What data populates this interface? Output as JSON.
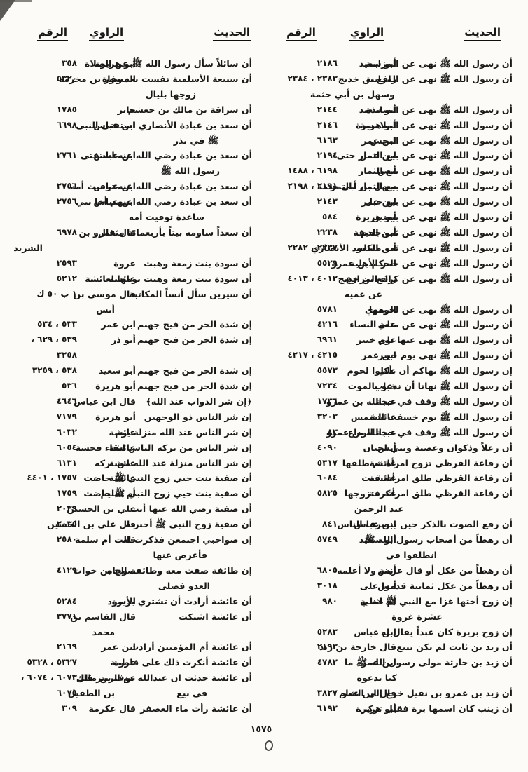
{
  "page": {
    "page_number": "١٥٧٥"
  },
  "columns": [
    {
      "id": "right-index-column",
      "headers": {
        "hadith": "الحديث",
        "narrator": "الراوي",
        "number": "الرقم"
      },
      "rows": [
        {
          "hadith": [
            "أن رسول الله ﷺ نهى عن المزابنة"
          ],
          "narrator": [
            "أبو سعيد"
          ],
          "number": [
            "٢١٨٦"
          ]
        },
        {
          "hadith": [
            "أن رسول الله ﷺ نهى عن المزابنة"
          ],
          "narrator": [
            "رافع بن خديج",
            "وسهل بن أبي حثمة"
          ],
          "n_indent": 2,
          "number": [
            "٢٣٨٤ ، ٢٣٨٣"
          ]
        },
        {
          "hadith": [
            "أن رسول الله ﷺ نهى عن المنابذة"
          ],
          "narrator": [
            "أبو سعيد"
          ],
          "number": [
            "٢١٤٤"
          ]
        },
        {
          "hadith": [
            "أن رسول الله ﷺ نهى عن الملامسة"
          ],
          "narrator": [
            "أبو هريرة"
          ],
          "number": [
            "٢١٤٦"
          ]
        },
        {
          "hadith": [
            "أن رسول الله ﷺ نهى عن النجش"
          ],
          "narrator": [
            "ابن عمر"
          ],
          "number": [
            "٦١٦٣"
          ]
        },
        {
          "hadith": [
            "أن رسول الله ﷺ نهى عن بيع الثمار حتى"
          ],
          "narrator": [
            "ابن عمر"
          ],
          "number": [
            "٢١٩٤"
          ]
        },
        {
          "hadith": [
            "أن رسول الله ﷺ نهى عن بيع الثمار"
          ],
          "narrator": [
            "أنس"
          ],
          "number": [
            "١٤٨٨ ، ٦١٩٨"
          ]
        },
        {
          "hadith": [
            "أن رسول الله ﷺ نهى عن بيع الثمار بالتمر"
          ],
          "narrator": [
            "سهل بن أبي حثمة"
          ],
          "number": [
            "٢١٩٨ ، ٢١٩١"
          ]
        },
        {
          "hadith": [
            "أن رسول الله ﷺ نهى عن بيع حبل"
          ],
          "narrator": [
            "ابن عمر"
          ],
          "number": [
            "٢١٤٣"
          ]
        },
        {
          "hadith": [
            "أن رسول الله ﷺ نهى عن بيعتين"
          ],
          "narrator": [
            "أبو هريرة"
          ],
          "number": [
            "٥٨٤"
          ]
        },
        {
          "hadith": [
            "أن رسول الله ﷺ نهى عن ثمن الدم"
          ],
          "narrator": [
            "أبو جحيفة"
          ],
          "number": [
            "٢٢٣٨"
          ]
        },
        {
          "hadith": [
            "أن رسول الله ﷺ نهى عن ثمن الكلب"
          ],
          "narrator": [
            "أبو مسعود الأنصاري"
          ],
          "number": [
            "٢٢٨٢ ، ٢٢٣٧"
          ]
        },
        {
          "hadith": [
            "أن رسول الله ﷺ نهى عن حمر الأهلية"
          ],
          "narrator": [
            "الحكم بن عمرو"
          ],
          "number": [
            "٥٥٢٩"
          ]
        },
        {
          "hadith": [
            "أن رسول الله ﷺ نهى عن كراء المزارع"
          ],
          "narrator": [
            "رافع بن خديج",
            "عن عميه"
          ],
          "n_indent": 20,
          "number": [
            "٤٠١٣ ، ٤٠١٢"
          ]
        },
        {
          "hadith": [
            "أن رسول الله ﷺ نهى عن لحومها"
          ],
          "narrator": [
            "الزهري"
          ],
          "number": [
            "٥٧٨١"
          ]
        },
        {
          "hadith": [
            "أن رسول الله ﷺ نهى عن متعة النساء"
          ],
          "narrator": [
            "علي"
          ],
          "number": [
            "٤٢١٦"
          ]
        },
        {
          "hadith": [
            "أن رسول الله ﷺ نهى عنها يوم خيبر"
          ],
          "narrator": [
            "علي"
          ],
          "number": [
            "٦٩٦١"
          ]
        },
        {
          "hadith": [
            "أن رسول الله ﷺ نهى يوم خيبر"
          ],
          "narrator": [
            "ابن عمر"
          ],
          "number": [
            "٤٢١٧ ، ٤٢١٥"
          ]
        },
        {
          "hadith": [
            "إن رسول الله ﷺ نهاكم أن تأكلوا لحوم"
          ],
          "narrator": [
            "علي"
          ],
          "number": [
            "٥٥٧٣"
          ]
        },
        {
          "hadith": [
            "أن رسول الله ﷺ نهانا أن ندعو بالموت"
          ],
          "narrator": [
            "خباب"
          ],
          "number": [
            "٧٢٣٤"
          ]
        },
        {
          "hadith": [
            "أن رسول الله ﷺ وقف في حجة"
          ],
          "narrator": [
            "عبدالله بن عمرو"
          ],
          "number": [
            "١٧٣٦"
          ]
        },
        {
          "hadith": [
            "أن رسول الله ﷺ يوم خسفت الشمس"
          ],
          "narrator": [
            "عائشة"
          ],
          "number": [
            "٣٢٠٣"
          ]
        },
        {
          "hadith": [
            "أن رسول الله ﷺ وقف في حجة الوداع"
          ],
          "narrator": [
            "عبدالله بن عمرو"
          ],
          "number": [
            "٨٣"
          ]
        },
        {
          "hadith": [
            "أن رعلاً وذكوان وعصية وبني لحيان"
          ],
          "narrator": [
            "أنس"
          ],
          "number": [
            "٤٠٩٠"
          ]
        },
        {
          "hadith": [
            "أن رفاعة القرظي تزوج امرأة ثم طلقها"
          ],
          "narrator": [
            "عائشة"
          ],
          "number": [
            "٥٣١٧"
          ]
        },
        {
          "hadith": [
            "أن رفاعة القرظي طلق امرأته فبت"
          ],
          "narrator": [
            "عائشة"
          ],
          "number": [
            "٦٠٨٤"
          ]
        },
        {
          "hadith": [
            "أن رفاعة القرظي طلق امرأته فتزوجها",
            "عبد الرحمن"
          ],
          "indent": 155,
          "narrator": [
            "عكرمة"
          ],
          "number": [
            "٥٨٢٥"
          ]
        },
        {
          "hadith": [
            "أن رفع الصوت بالذكر حين ينصرف الناس"
          ],
          "narrator": [
            "ابن عباس"
          ],
          "number": [
            "٨٤١"
          ]
        },
        {
          "hadith": [
            "أن رهطاً من أصحاب رسول الله ﷺ",
            "انطلقوا في"
          ],
          "indent": 108,
          "narrator": [
            "أبو سعيد"
          ],
          "number": [
            "٥٧٤٩"
          ]
        },
        {
          "hadith": [
            "أن رهطاً من عكل أو قال عرينة ولا أعلمه"
          ],
          "narrator": [
            "أنس"
          ],
          "number": [
            "٦٨٠٥"
          ]
        },
        {
          "hadith": [
            "أن رهطاً من عكل ثمانية قدموا على"
          ],
          "narrator": [
            "أنس"
          ],
          "number": [
            "٣٠١٨"
          ]
        },
        {
          "hadith": [
            "إن زوج أختها غزا مع النبي ﷺ اثنتي",
            "عشرة غزوة"
          ],
          "indent": 100,
          "narrator": [
            "أم عطية"
          ],
          "number": [
            "٩٨٠"
          ]
        },
        {
          "hadith": [
            "إن زوج بريرة كان عبداً يقال له"
          ],
          "narrator": [
            "ابن عباس"
          ],
          "number": [
            "٥٢٨٣"
          ]
        },
        {
          "hadith": [
            "أن زيد بن ثابت لم يكن يبيع"
          ],
          "narrator": [
            "قال خارجة بن زيد"
          ],
          "number": [
            "٢١٩٣"
          ]
        },
        {
          "hadith": [
            "أن زيد بن حارثة مولى رسول الله ﷺ ما",
            "كنا ندعوه"
          ],
          "indent": 165,
          "narrator": [
            "ابن عمر"
          ],
          "number": [
            "٤٧٨٢"
          ]
        },
        {
          "hadith": [
            "أن زيد بن عمرو بن نفيل خرج إلى الشام"
          ],
          "narrator": [
            "قال ابن عمر"
          ],
          "number": [
            "٣٨٢٧"
          ]
        },
        {
          "hadith": [
            "أن زينب كان اسمها برة فقيل تزكي"
          ],
          "narrator": [
            "أبو هريرة"
          ],
          "number": [
            "٦١٩٢"
          ]
        }
      ]
    },
    {
      "id": "left-index-column",
      "headers": {
        "hadith": "الحديث",
        "narrator": "الراوي",
        "number": "الرقم"
      },
      "rows": [
        {
          "hadith": [
            "أن سائلاً سأل رسول الله ﷺ عن الصلاة"
          ],
          "narrator": [
            "أبو هريرة"
          ],
          "number": [
            "٣٥٨"
          ]
        },
        {
          "hadith": [
            "أن سبيعة الأسلمية نفست بعد وفاة",
            "زوجها بليال"
          ],
          "indent": 80,
          "narrator": [
            "المسور بن مخرمة"
          ],
          "number": [
            "٥٣٢٠"
          ]
        },
        {
          "hadith": [
            "أن سراقة بن مالك بن جعشم"
          ],
          "narrator": [
            "جابر"
          ],
          "number": [
            "١٧٨٥"
          ]
        },
        {
          "hadith": [
            "أن سعد بن عبادة الأنصاري استفتى النبي",
            "ﷺ في نذر"
          ],
          "indent": 48,
          "narrator": [
            "ابن عباس"
          ],
          "number": [
            "٦٦٩٨"
          ]
        },
        {
          "hadith": [
            "أن سعد بن عبادة رضي الله عنه استفتى",
            "رسول الله ﷺ"
          ],
          "indent": 46,
          "narrator": [
            "ابن عباس"
          ],
          "number": [
            "٢٧٦١"
          ]
        },
        {
          "hadith": [
            "أن سعد بن عبادة رضي الله عنه توفيت أمه"
          ],
          "narrator": [
            "ابن عباس"
          ],
          "number": [
            "٢٧٥٦"
          ]
        },
        {
          "hadith": [
            "أن سعد بن عبادة رضي الله عنهم أخا بني",
            "ساعدة توفيت أمه"
          ],
          "indent": 68,
          "narrator": [
            "ابن عباس"
          ],
          "number": [
            "٢٧٥٦"
          ]
        },
        {
          "hadith": [
            "أن سعداً ساومه بيتاً بأربعمائة مثقال"
          ],
          "narrator": [
            "قال عمرو بن",
            "الشريد"
          ],
          "n_indent": 133,
          "number": [
            "٦٩٧٨"
          ]
        },
        {
          "hadith": [
            "أن سودة بنت زمعة وهبت"
          ],
          "narrator": [
            "عروة"
          ],
          "number": [
            "٢٥٩٣"
          ]
        },
        {
          "hadith": [
            "أن سودة بنت زمعة وهبت يومها لعائشة"
          ],
          "narrator": [
            "عائشة"
          ],
          "number": [
            "٥٢١٢"
          ]
        },
        {
          "hadith": [
            "أن سيرين سأل أنساً المكاتبة"
          ],
          "narrator": [
            "قال موسى بن",
            "أنس"
          ],
          "number": [
            "ك ٥٠ ب ١"
          ]
        },
        {
          "hadith": [
            "إن شدة الحر من فيح جهنم"
          ],
          "narrator": [
            "ابن عمر"
          ],
          "number": [
            "٥٣٤ ، ٥٣٣"
          ]
        },
        {
          "hadith": [
            "إن شدة الحر من فيح جهنم"
          ],
          "narrator": [
            "أبو ذر"
          ],
          "number": [
            "، ٦٢٩ ، ٥٣٩",
            "٣٢٥٨"
          ]
        },
        {
          "hadith": [
            "إن شدة الحر من فيح جهنم"
          ],
          "narrator": [
            "أبو سعيد"
          ],
          "number": [
            "٣٢٥٩ ، ٥٣٨"
          ]
        },
        {
          "hadith": [
            "إن شدة الحر من فيح جهنم"
          ],
          "narrator": [
            "أبو هريرة"
          ],
          "number": [
            "٥٣٦"
          ]
        },
        {
          "hadith": [
            "﴿إن شر الدواب عند الله﴾"
          ],
          "narrator": [
            "قال ابن عباس"
          ],
          "number": [
            "٤٦٤٦"
          ]
        },
        {
          "hadith": [
            "إن شر الناس ذو الوجهين"
          ],
          "narrator": [
            "أبو هريرة"
          ],
          "number": [
            "٧١٧٩"
          ]
        },
        {
          "hadith": [
            "إن شر الناس عند الله منزلة يوم"
          ],
          "narrator": [
            "عائشة"
          ],
          "number": [
            "٦٠٣٢"
          ]
        },
        {
          "hadith": [
            "إن شر الناس من تركه الناس اتقاء فحشة"
          ],
          "narrator": [
            "عائشة"
          ],
          "number": [
            "٦٠٥٤"
          ]
        },
        {
          "hadith": [
            "إن شر الناس منزلة عند الله من تركه"
          ],
          "narrator": [
            "عائشة"
          ],
          "number": [
            "٦١٣١"
          ]
        },
        {
          "hadith": [
            "أن صفية بنت حيي زوج النبي ﷺ حاضت"
          ],
          "narrator": [
            "عائشة"
          ],
          "number": [
            "٤٤٠١ ، ١٧٥٧"
          ]
        },
        {
          "hadith": [
            "أن صفية بنت حيي زوج النبي ﷺ حاضت"
          ],
          "narrator": [
            "أم سليم"
          ],
          "number": [
            "١٧٥٩"
          ]
        },
        {
          "hadith": [
            "أن صفية رضي الله عنها أتت"
          ],
          "narrator": [
            "علي بن الحسين"
          ],
          "number": [
            "٢٠٣٩"
          ]
        },
        {
          "hadith": [
            "أن صفية زوج النبي ﷺ أخبرته"
          ],
          "narrator": [
            "قال علي بن الحسين"
          ],
          "number": [
            "٢٠٣٥"
          ]
        },
        {
          "hadith": [
            "إن صواحبي اجتمعن فذكرت له",
            "فأعرض عنها"
          ],
          "indent": 64,
          "narrator": [
            "قالت أم سلمة"
          ],
          "number": [
            "٢٥٨٠"
          ]
        },
        {
          "hadith": [
            "إن طائفة صفت معه وطائفة وجاه",
            "العدو فصلى"
          ],
          "indent": 60,
          "narrator": [
            "صالح بن خوات"
          ],
          "number": [
            "٤١٢٩"
          ]
        },
        {
          "hadith": [
            "أن عائشة أرادت أن تشتري بريرة"
          ],
          "narrator": [
            "الأسود"
          ],
          "number": [
            "٥٢٨٤"
          ]
        },
        {
          "hadith": [
            "أن عائشة اشتكت"
          ],
          "narrator": [
            "قال القاسم بن",
            "محمد"
          ],
          "number": [
            "٣٧٧١"
          ]
        },
        {
          "hadith": [
            "أن عائشة أم المؤمنين أرادت"
          ],
          "narrator": [
            "ابن عمر"
          ],
          "number": [
            "٢١٦٩"
          ]
        },
        {
          "hadith": [
            "أن عائشة أنكرت ذلك على فاطمة"
          ],
          "narrator": [
            "عروة"
          ],
          "number": [
            "٥٣٢٨ ، ٥٣٢٧"
          ]
        },
        {
          "hadith": [
            "أن عائشة حدثت ان عبدالله بن الزبير قال",
            "في بيع"
          ],
          "indent": 64,
          "narrator": [
            "عوف بن مالك",
            "بن الطفيل"
          ],
          "number": [
            "، ٦٠٧٤ ، ٦٠٧٣",
            "٦٠٧٥"
          ]
        },
        {
          "hadith": [
            "أن عائشة رأت ماء العصفر"
          ],
          "narrator": [
            "قال عكرمة"
          ],
          "number": [
            "٣٠٩"
          ]
        }
      ]
    }
  ]
}
